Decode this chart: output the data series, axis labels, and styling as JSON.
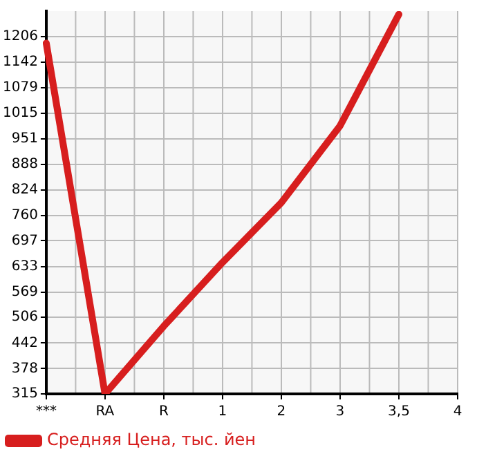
{
  "chart_data": {
    "type": "line",
    "categories": [
      "***",
      "RA",
      "R",
      "1",
      "2",
      "3",
      "3,5",
      "4"
    ],
    "series": [
      {
        "name": "Средняя Цена, тыс. йен",
        "color": "#d71e1e",
        "values": [
          1190,
          315,
          484,
          643,
          792,
          984,
          1262,
          null
        ]
      }
    ],
    "ylim": [
      315,
      1270
    ],
    "yticks": [
      315,
      378,
      442,
      506,
      569,
      633,
      697,
      760,
      824,
      888,
      951,
      1015,
      1079,
      1142,
      1206
    ],
    "grid": true,
    "legend": "bottom",
    "marker": "none",
    "line_style": "solid"
  }
}
